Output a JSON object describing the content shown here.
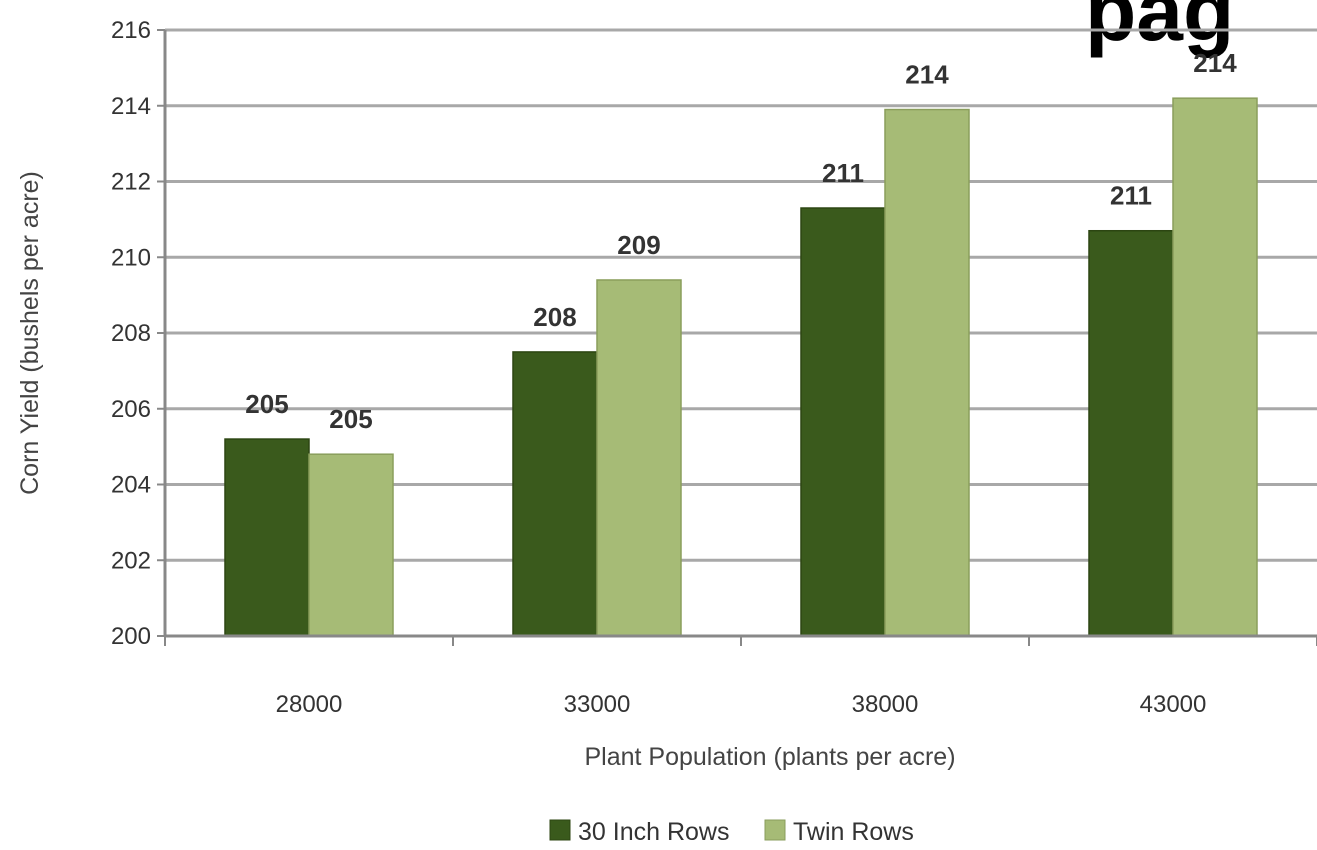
{
  "partial_title": "pag",
  "chart_data": {
    "type": "bar",
    "title": "",
    "xlabel": "Plant Population (plants per acre)",
    "ylabel": "Corn Yield (bushels per acre)",
    "categories": [
      "28000",
      "33000",
      "38000",
      "43000"
    ],
    "series": [
      {
        "name": "30 Inch Rows",
        "values": [
          205.2,
          207.5,
          211.3,
          210.7
        ],
        "labels": [
          "205",
          "208",
          "211",
          "211"
        ],
        "color": "#3a5a1c"
      },
      {
        "name": "Twin Rows",
        "values": [
          204.8,
          209.4,
          213.9,
          214.2
        ],
        "labels": [
          "205",
          "209",
          "214",
          "214"
        ],
        "color": "#a6bb76"
      }
    ],
    "ylim": [
      200,
      216
    ],
    "yticks": [
      "200",
      "202",
      "204",
      "206",
      "208",
      "210",
      "212",
      "214",
      "216"
    ],
    "ytick_step": 2,
    "grid": true,
    "legend_position": "bottom"
  }
}
